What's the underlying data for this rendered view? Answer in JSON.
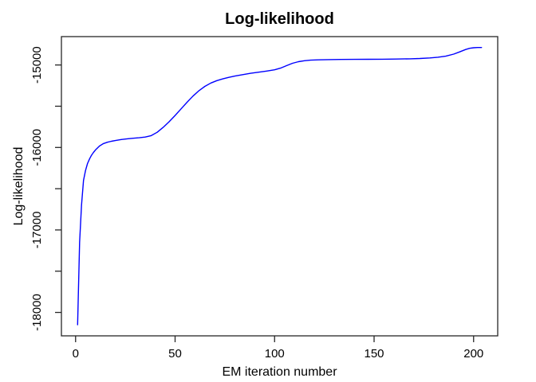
{
  "figure": {
    "background_color": "#ffffff"
  },
  "chart_data": {
    "type": "line",
    "title": "Log-likelihood",
    "xlabel": "EM iteration number",
    "ylabel": "Log-likelihood",
    "legend": "none",
    "grid": "off",
    "line_color": "#0000ff",
    "axis_color": "#262626",
    "xlim": [
      -7.12,
      212.12
    ],
    "ylim": [
      -18284,
      -14656
    ],
    "x_data_range": [
      1,
      204
    ],
    "xticks": [
      {
        "value": 0,
        "label": "0"
      },
      {
        "value": 50,
        "label": "50"
      },
      {
        "value": 100,
        "label": "100"
      },
      {
        "value": 150,
        "label": "150"
      },
      {
        "value": 200,
        "label": "200"
      }
    ],
    "yticks_labeled": [
      {
        "value": -15000,
        "label": "-15000"
      },
      {
        "value": -16000,
        "label": "-16000"
      },
      {
        "value": -17000,
        "label": "-17000"
      },
      {
        "value": -18000,
        "label": "-18000"
      }
    ],
    "yticks_minor": [
      -15500,
      -16500,
      -17500
    ],
    "series": [
      {
        "name": "Log-likelihood",
        "points": [
          [
            1,
            -18150
          ],
          [
            2,
            -17150
          ],
          [
            3,
            -16700
          ],
          [
            4,
            -16400
          ],
          [
            5,
            -16280
          ],
          [
            6,
            -16195
          ],
          [
            7,
            -16140
          ],
          [
            8,
            -16095
          ],
          [
            9,
            -16060
          ],
          [
            10,
            -16030
          ],
          [
            12,
            -15983
          ],
          [
            14,
            -15953
          ],
          [
            16,
            -15936
          ],
          [
            18,
            -15925
          ],
          [
            20,
            -15916
          ],
          [
            23,
            -15904
          ],
          [
            26,
            -15895
          ],
          [
            29,
            -15888
          ],
          [
            32,
            -15882
          ],
          [
            35,
            -15874
          ],
          [
            38,
            -15856
          ],
          [
            41,
            -15816
          ],
          [
            44,
            -15757
          ],
          [
            47,
            -15688
          ],
          [
            50,
            -15612
          ],
          [
            53,
            -15532
          ],
          [
            56,
            -15452
          ],
          [
            59,
            -15377
          ],
          [
            62,
            -15311
          ],
          [
            65,
            -15259
          ],
          [
            68,
            -15219
          ],
          [
            71,
            -15190
          ],
          [
            74,
            -15168
          ],
          [
            77,
            -15150
          ],
          [
            80,
            -15135
          ],
          [
            84,
            -15117
          ],
          [
            88,
            -15101
          ],
          [
            92,
            -15087
          ],
          [
            96,
            -15074
          ],
          [
            100,
            -15058
          ],
          [
            103,
            -15038
          ],
          [
            106,
            -15008
          ],
          [
            109,
            -14979
          ],
          [
            112,
            -14960
          ],
          [
            115,
            -14948
          ],
          [
            118,
            -14942
          ],
          [
            122,
            -14938
          ],
          [
            127,
            -14935
          ],
          [
            133,
            -14933
          ],
          [
            140,
            -14932
          ],
          [
            147,
            -14931
          ],
          [
            154,
            -14930
          ],
          [
            161,
            -14928
          ],
          [
            168,
            -14925
          ],
          [
            173,
            -14921
          ],
          [
            178,
            -14915
          ],
          [
            182,
            -14906
          ],
          [
            186,
            -14893
          ],
          [
            190,
            -14868
          ],
          [
            193,
            -14841
          ],
          [
            196,
            -14812
          ],
          [
            198,
            -14798
          ],
          [
            200,
            -14791
          ],
          [
            202,
            -14788
          ],
          [
            204,
            -14788
          ]
        ]
      }
    ]
  }
}
